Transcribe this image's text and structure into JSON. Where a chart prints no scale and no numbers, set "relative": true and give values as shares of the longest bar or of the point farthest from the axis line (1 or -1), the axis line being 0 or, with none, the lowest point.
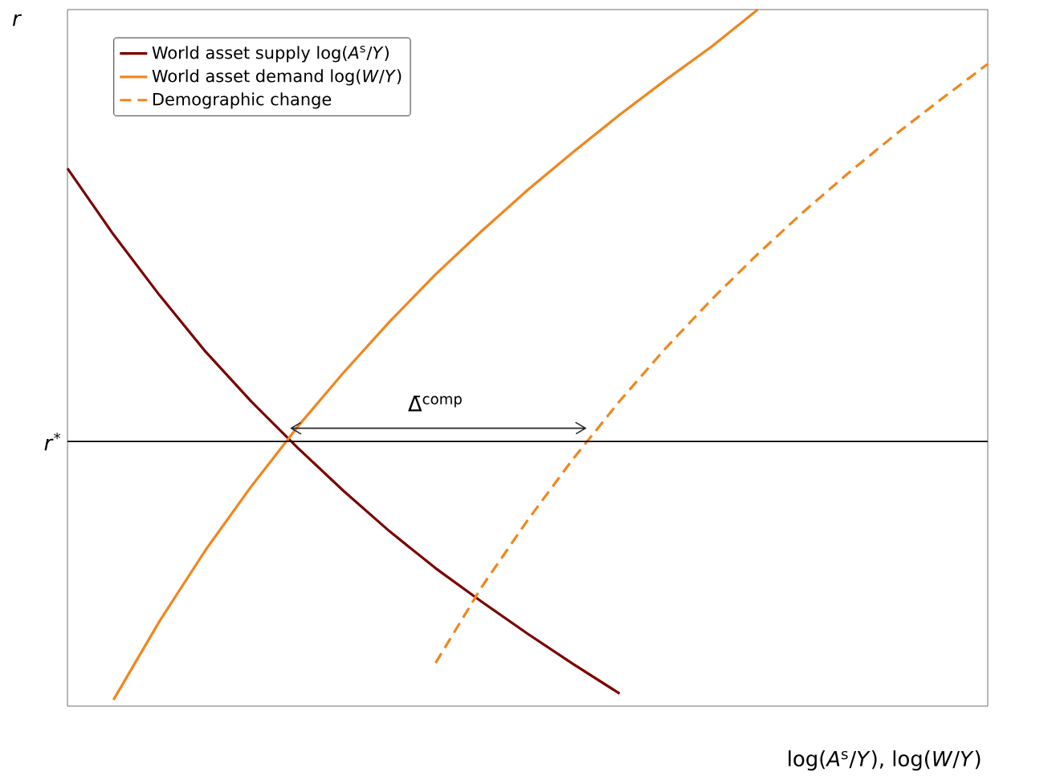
{
  "chart_data": {
    "type": "line",
    "relative": true,
    "ylabel": "*r*",
    "xlabel": "log(*A*$^{s}$/*Y*),  log(*W*/*Y*)",
    "categories": [
      null,
      null,
      null,
      null,
      null,
      null,
      null,
      null,
      null,
      null,
      null,
      null,
      null,
      null,
      null,
      null,
      null,
      null,
      null,
      null,
      null
    ],
    "series": [
      {
        "name": "World asset supply log(*A*$^{s}$/*Y*)",
        "color": "#7b0000",
        "values": [
          0.772,
          0.677,
          0.59,
          0.509,
          0.437,
          0.371,
          0.309,
          0.251,
          0.198,
          0.15,
          0.104,
          0.06,
          0.018,
          null,
          null,
          null,
          null,
          null,
          null,
          null,
          null
        ]
      },
      {
        "name": "World asset demand log(*W*/*Y*)",
        "color": "#f0861e",
        "values": [
          null,
          0.009,
          0.122,
          0.224,
          0.316,
          0.401,
          0.479,
          0.552,
          0.62,
          0.682,
          0.741,
          0.796,
          0.849,
          0.899,
          0.947,
          1.0,
          null,
          null,
          null,
          null,
          null
        ]
      },
      {
        "name": "Demographic change",
        "color": "#f0861e",
        "line_style": "dashed",
        "values": [
          null,
          null,
          null,
          null,
          null,
          null,
          null,
          null,
          0.062,
          0.171,
          0.267,
          0.356,
          0.438,
          0.514,
          0.584,
          0.649,
          0.71,
          0.767,
          0.821,
          0.872,
          0.922
        ]
      }
    ],
    "ref_lines": [
      {
        "axis": "y",
        "value": 0.38,
        "label": "*r*$^{*}$",
        "color": "#000000"
      }
    ],
    "annotations": [
      "Δ̄$^{comp}$"
    ],
    "legend": "top left",
    "marker": "none"
  }
}
